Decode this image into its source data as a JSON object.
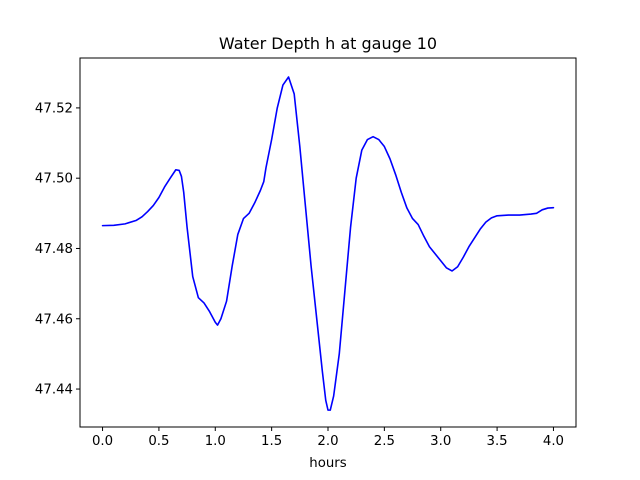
{
  "chart_data": {
    "type": "line",
    "title": "Water Depth h at gauge 10",
    "xlabel": "hours",
    "ylabel": "",
    "xlim": [
      -0.2,
      4.2
    ],
    "ylim": [
      47.4292,
      47.5342
    ],
    "x_ticks": [
      0.0,
      0.5,
      1.0,
      1.5,
      2.0,
      2.5,
      3.0,
      3.5,
      4.0
    ],
    "x_tick_labels": [
      "0.0",
      "0.5",
      "1.0",
      "1.5",
      "2.0",
      "2.5",
      "3.0",
      "3.5",
      "4.0"
    ],
    "y_ticks": [
      47.44,
      47.46,
      47.48,
      47.5,
      47.52
    ],
    "y_tick_labels": [
      "47.44",
      "47.46",
      "47.48",
      "47.50",
      "47.52"
    ],
    "grid": false,
    "series": [
      {
        "color": "#0000ff",
        "x": [
          0.0,
          0.1,
          0.2,
          0.3,
          0.35,
          0.4,
          0.45,
          0.5,
          0.55,
          0.6,
          0.65,
          0.68,
          0.7,
          0.72,
          0.75,
          0.8,
          0.85,
          0.9,
          0.95,
          1.0,
          1.02,
          1.05,
          1.1,
          1.15,
          1.2,
          1.25,
          1.3,
          1.35,
          1.4,
          1.43,
          1.45,
          1.5,
          1.55,
          1.6,
          1.65,
          1.7,
          1.75,
          1.8,
          1.85,
          1.9,
          1.95,
          1.98,
          2.0,
          2.02,
          2.05,
          2.1,
          2.15,
          2.2,
          2.25,
          2.3,
          2.35,
          2.4,
          2.45,
          2.5,
          2.55,
          2.6,
          2.65,
          2.7,
          2.75,
          2.8,
          2.85,
          2.9,
          2.95,
          3.0,
          3.05,
          3.1,
          3.15,
          3.2,
          3.25,
          3.3,
          3.35,
          3.4,
          3.45,
          3.5,
          3.6,
          3.7,
          3.8,
          3.85,
          3.9,
          3.95,
          4.0
        ],
        "y": [
          47.4865,
          47.4866,
          47.487,
          47.488,
          47.489,
          47.4905,
          47.4922,
          47.4945,
          47.4975,
          47.5,
          47.5024,
          47.5022,
          47.5005,
          47.496,
          47.486,
          47.472,
          47.466,
          47.4645,
          47.462,
          47.459,
          47.4582,
          47.46,
          47.465,
          47.475,
          47.484,
          47.4885,
          47.49,
          47.493,
          47.4965,
          47.499,
          47.503,
          47.511,
          47.52,
          47.5265,
          47.5288,
          47.524,
          47.509,
          47.492,
          47.475,
          47.46,
          47.445,
          47.4368,
          47.434,
          47.434,
          47.438,
          47.45,
          47.468,
          47.486,
          47.5,
          47.508,
          47.511,
          47.5118,
          47.511,
          47.509,
          47.5055,
          47.501,
          47.496,
          47.4915,
          47.4885,
          47.4868,
          47.4835,
          47.4805,
          47.4785,
          47.4765,
          47.4745,
          47.4736,
          47.4748,
          47.4775,
          47.4805,
          47.483,
          47.4855,
          47.4875,
          47.4887,
          47.4893,
          47.4895,
          47.4895,
          47.4898,
          47.49,
          47.491,
          47.4915,
          47.4916
        ]
      }
    ]
  }
}
